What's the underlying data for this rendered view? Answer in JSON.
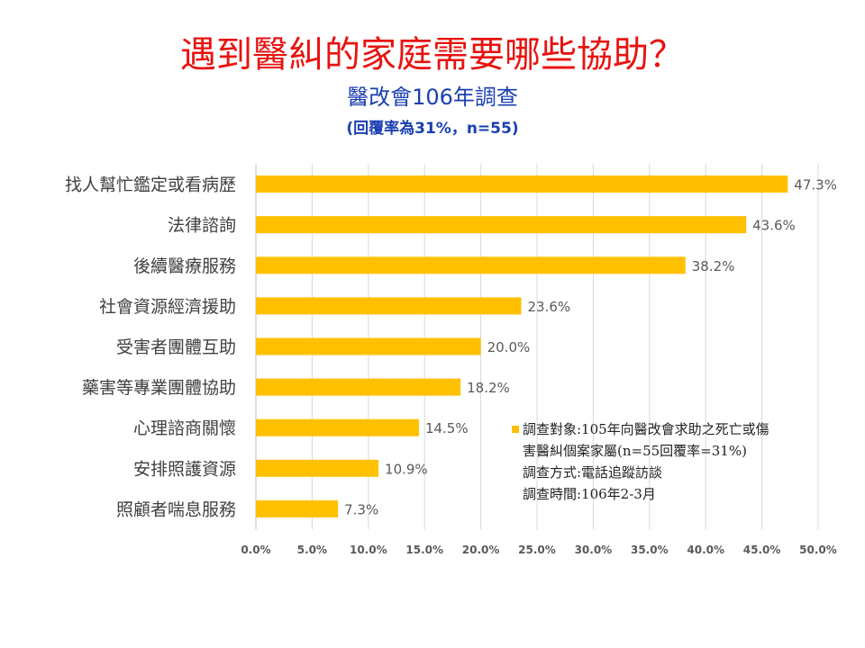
{
  "header": {
    "title": "遇到醫糾的家庭需要哪些協助？",
    "subtitle": "醫改會106年調查",
    "note": "(回覆率為31%，n=55)"
  },
  "colors": {
    "bar": "#ffc000",
    "title": "#e8130f",
    "subtitle": "#1a3fb0",
    "grid": "#d9d9d9"
  },
  "chart_data": {
    "type": "bar",
    "orientation": "horizontal",
    "categories": [
      "找人幫忙鑑定或看病歷",
      "法律諮詢",
      "後續醫療服務",
      "社會資源經濟援助",
      "受害者團體互助",
      "藥害等專業團體協助",
      "心理諮商關懷",
      "安排照護資源",
      "照顧者喘息服務"
    ],
    "values": [
      47.3,
      43.6,
      38.2,
      23.6,
      20.0,
      18.2,
      14.5,
      10.9,
      7.3
    ],
    "value_labels": [
      "47.3%",
      "43.6%",
      "38.2%",
      "23.6%",
      "20.0%",
      "18.2%",
      "14.5%",
      "10.9%",
      "7.3%"
    ],
    "xlim": [
      0,
      50
    ],
    "x_ticks": [
      "0.0%",
      "5.0%",
      "10.0%",
      "15.0%",
      "20.0%",
      "25.0%",
      "30.0%",
      "35.0%",
      "40.0%",
      "45.0%",
      "50.0%"
    ],
    "grid": true,
    "legend": "none"
  },
  "annotation": {
    "lines": [
      "調查對象:105年向醫改會求助之死亡或傷",
      "害醫糾個案家屬(n=55回覆率=31%)",
      "調查方式:電話追蹤訪談",
      "調查時間:106年2-3月"
    ]
  }
}
